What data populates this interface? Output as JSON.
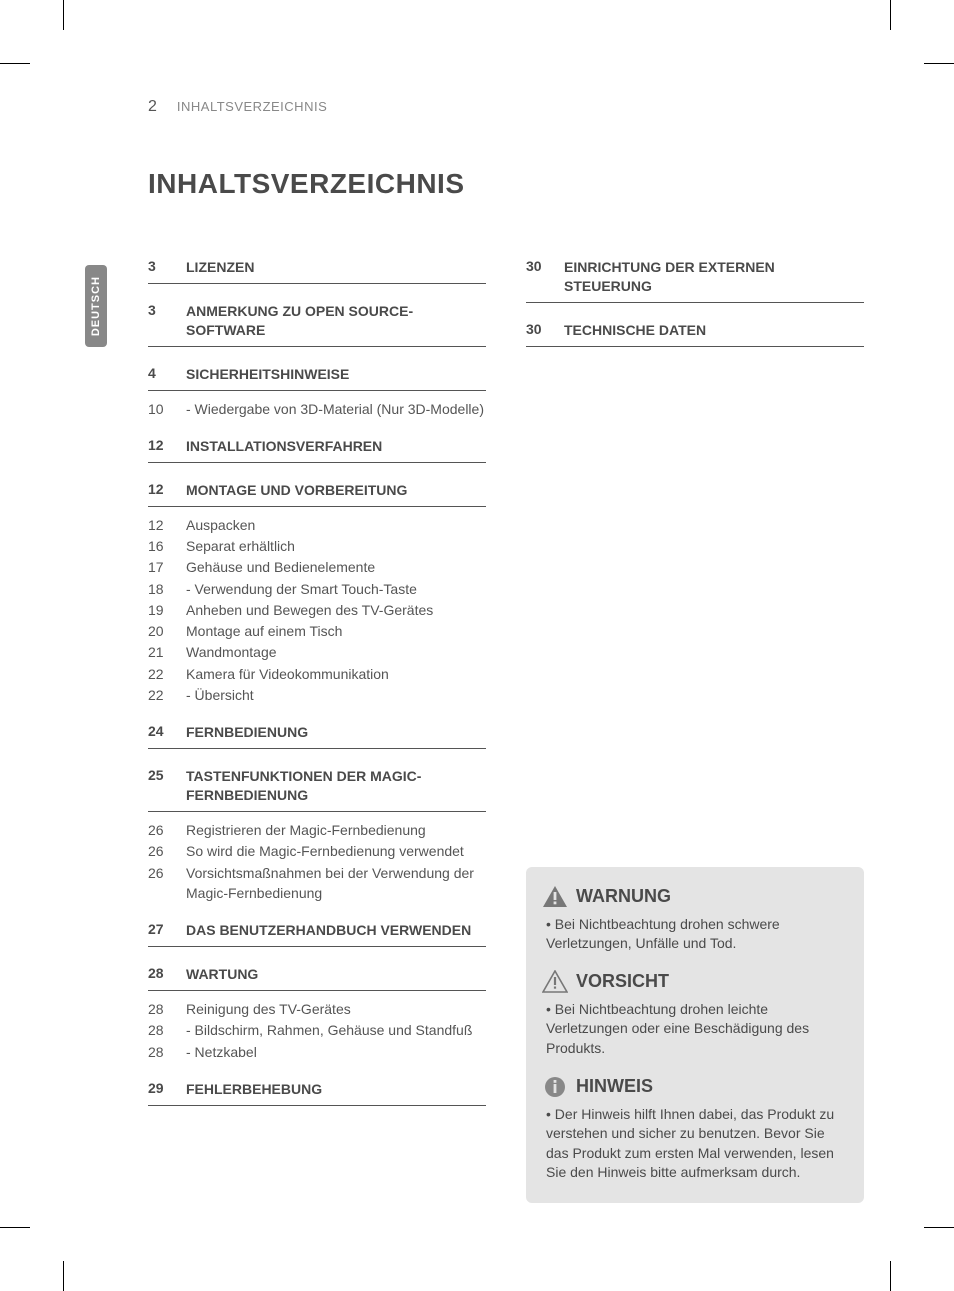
{
  "header": {
    "page_number": "2",
    "section_name": "INHALTSVERZEICHNIS"
  },
  "lang_tab": "DEUTSCH",
  "title": "INHALTSVERZEICHNIS",
  "left_sections": [
    {
      "page": "3",
      "title": "LIZENZEN",
      "items": []
    },
    {
      "page": "3",
      "title": "ANMERKUNG ZU OPEN SOURCE-SOFTWARE",
      "items": []
    },
    {
      "page": "4",
      "title": "SICHERHEITSHINWEISE",
      "items": [
        {
          "page": "10",
          "title": " - Wiedergabe von 3D-Material (Nur 3D-Modelle)"
        }
      ]
    },
    {
      "page": "12",
      "title": "INSTALLATIONSVERFAHREN",
      "items": []
    },
    {
      "page": "12",
      "title": "MONTAGE UND VORBEREITUNG",
      "items": [
        {
          "page": "12",
          "title": "Auspacken"
        },
        {
          "page": "16",
          "title": "Separat erhältlich"
        },
        {
          "page": "17",
          "title": "Gehäuse und Bedienelemente"
        },
        {
          "page": "18",
          "title": " - Verwendung der Smart Touch-Taste"
        },
        {
          "page": "19",
          "title": "Anheben und Bewegen des TV-Gerätes"
        },
        {
          "page": "20",
          "title": "Montage auf einem Tisch"
        },
        {
          "page": "21",
          "title": "Wandmontage"
        },
        {
          "page": "22",
          "title": "Kamera für Videokommunikation"
        },
        {
          "page": "22",
          "title": " - Übersicht"
        }
      ]
    },
    {
      "page": "24",
      "title": "FERNBEDIENUNG",
      "items": []
    },
    {
      "page": "25",
      "title": "TASTENFUNKTIONEN DER MAGIC-FERNBEDIENUNG",
      "items": [
        {
          "page": "26",
          "title": "Registrieren der Magic-Fernbedienung"
        },
        {
          "page": "26",
          "title": "So wird die Magic-Fernbedienung verwendet"
        },
        {
          "page": "26",
          "title": "Vorsichtsmaßnahmen bei der Verwendung der Magic-Fernbedienung"
        }
      ]
    },
    {
      "page": "27",
      "title": "DAS BENUTZERHANDBUCH VERWENDEN",
      "items": []
    },
    {
      "page": "28",
      "title": "WARTUNG",
      "items": [
        {
          "page": "28",
          "title": "Reinigung des TV-Gerätes"
        },
        {
          "page": "28",
          "title": " - Bildschirm, Rahmen, Gehäuse und Standfuß"
        },
        {
          "page": "28",
          "title": " - Netzkabel"
        }
      ]
    },
    {
      "page": "29",
      "title": "FEHLERBEHEBUNG",
      "items": []
    }
  ],
  "right_sections": [
    {
      "page": "30",
      "title": "EINRICHTUNG DER EXTERNEN STEUERUNG",
      "items": []
    },
    {
      "page": "30",
      "title": "TECHNISCHE DATEN",
      "items": []
    }
  ],
  "notices": {
    "warning": {
      "title": "WARNUNG",
      "text": "Bei Nichtbeachtung drohen schwere Verletzungen, Unfälle und Tod."
    },
    "caution": {
      "title": "VORSICHT",
      "text": "Bei Nichtbeachtung drohen leichte Verletzungen oder eine Beschädigung des Produkts."
    },
    "note": {
      "title": "HINWEIS",
      "text": "Der Hinweis hilft Ihnen dabei, das Produkt zu verstehen und sicher zu benutzen. Bevor Sie das Produkt zum ersten Mal verwenden, lesen Sie den Hinweis bitte aufmerksam durch."
    }
  },
  "colors": {
    "text": "#4a4a4a",
    "muted": "#888888",
    "rule": "#555555",
    "notice_bg": "#e4e4e4",
    "lang_tab_bg": "#888888",
    "white": "#ffffff"
  }
}
